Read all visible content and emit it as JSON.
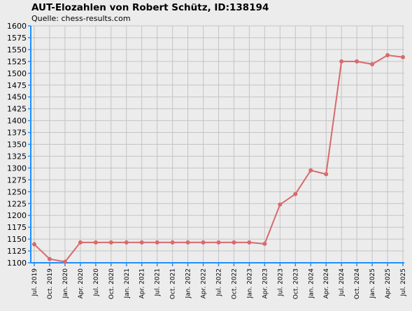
{
  "title": "AUT-Elozahlen von Robert Schütz, ID:138194",
  "subtitle": "Quelle: chess-results.com",
  "chart_data": {
    "type": "line",
    "categories": [
      "Jul. 2019",
      "Oct. 2019",
      "Jan. 2020",
      "Apr. 2020",
      "Jul. 2020",
      "Oct. 2020",
      "Jan. 2021",
      "Apr. 2021",
      "Jul. 2021",
      "Oct. 2021",
      "Jan. 2022",
      "Apr. 2022",
      "Jul. 2022",
      "Oct. 2022",
      "Jan. 2023",
      "Apr. 2023",
      "Jul. 2023",
      "Oct. 2023",
      "Jan. 2024",
      "Apr. 2024",
      "Jul. 2024",
      "Oct. 2024",
      "Jan. 2025",
      "Apr. 2025",
      "Jul. 2025"
    ],
    "values": [
      1139,
      1108,
      1102,
      1143,
      1143,
      1143,
      1143,
      1143,
      1143,
      1143,
      1143,
      1143,
      1143,
      1143,
      1143,
      1140,
      1223,
      1245,
      1295,
      1287,
      1525,
      1525,
      1519,
      1538,
      1534
    ],
    "ylim": [
      1100,
      1600
    ],
    "yticks": [
      1100,
      1125,
      1150,
      1175,
      1200,
      1225,
      1250,
      1275,
      1300,
      1325,
      1350,
      1375,
      1400,
      1425,
      1450,
      1475,
      1500,
      1525,
      1550,
      1575,
      1600
    ],
    "grid": true,
    "colors": {
      "line": "#d96a6a",
      "marker": "#d96a6a",
      "grid": "#c4c4c4",
      "axis": "#1e90ff",
      "plot_bg": "#ececec"
    }
  }
}
